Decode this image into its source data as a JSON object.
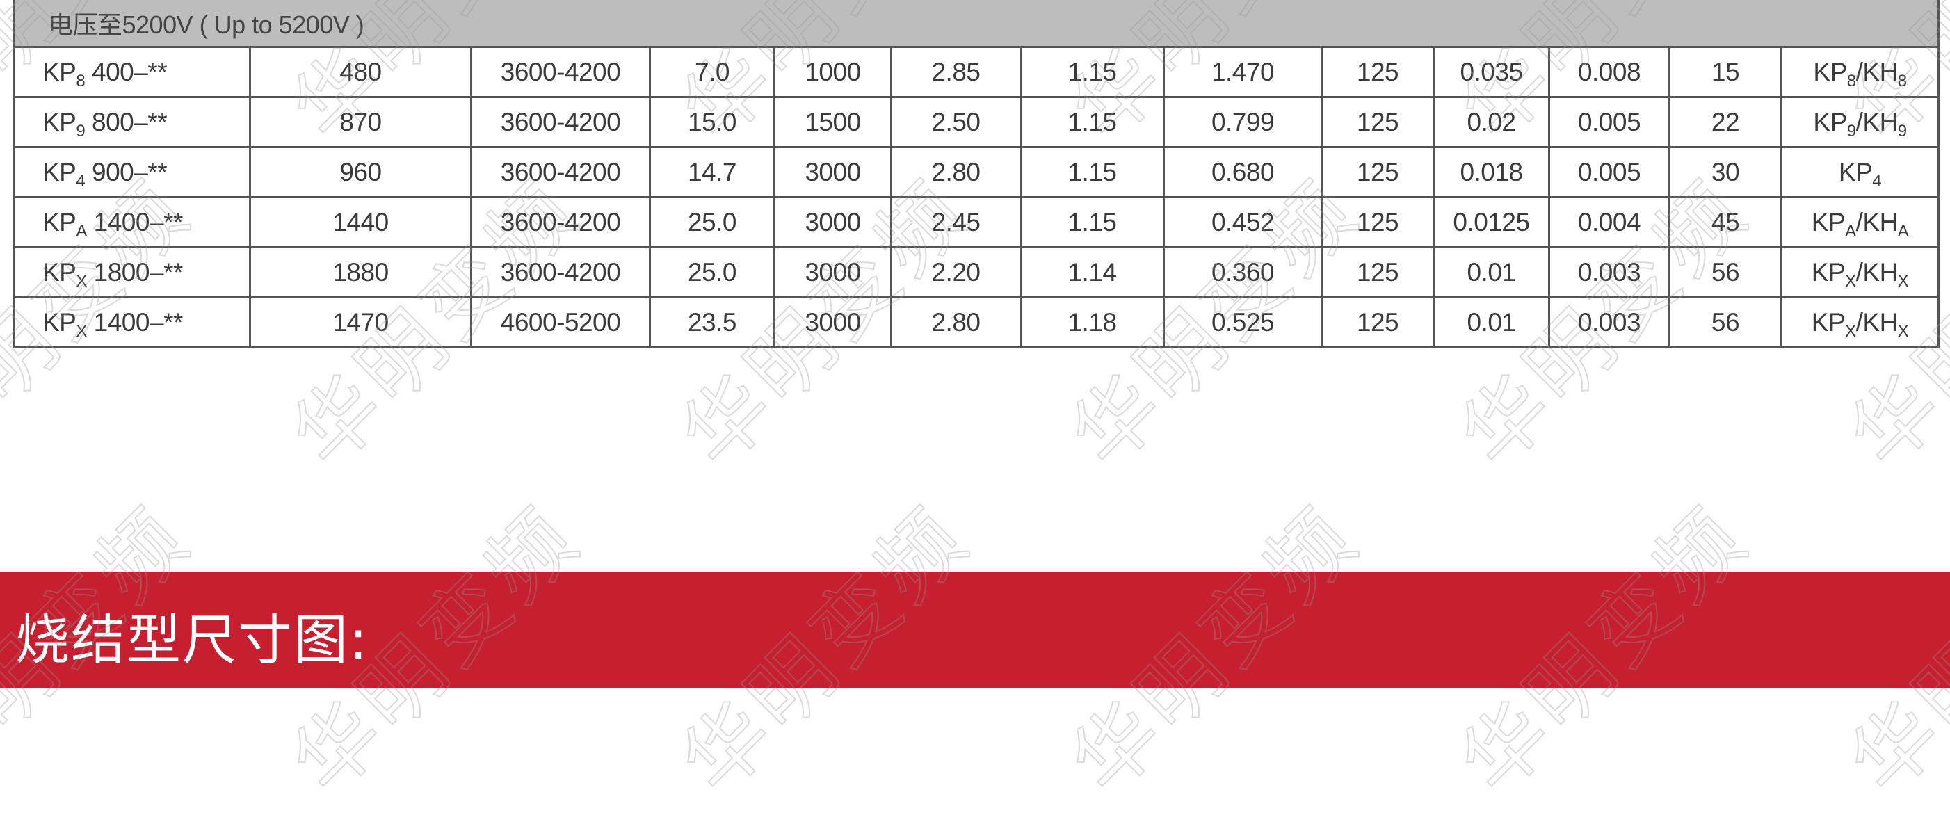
{
  "section_header": "电压至5200V ( Up to 5200V )",
  "rows": [
    {
      "model": {
        "t": "KP",
        "s": "8",
        "rest": "400–**"
      },
      "cells": [
        "480",
        "3600-4200",
        "7.0",
        "1000",
        "2.85",
        "1.15",
        "1.470",
        "125",
        "0.035",
        "0.008",
        "15"
      ],
      "housing": [
        {
          "t": "KP",
          "s": "8"
        },
        {
          "t": "/KH",
          "s": "8"
        }
      ]
    },
    {
      "model": {
        "t": "KP",
        "s": "9",
        "rest": "800–**"
      },
      "cells": [
        "870",
        "3600-4200",
        "15.0",
        "1500",
        "2.50",
        "1.15",
        "0.799",
        "125",
        "0.02",
        "0.005",
        "22"
      ],
      "housing": [
        {
          "t": "KP",
          "s": "9"
        },
        {
          "t": "/KH",
          "s": "9"
        }
      ]
    },
    {
      "model": {
        "t": "KP",
        "s": "4",
        "rest": "900–**"
      },
      "cells": [
        "960",
        "3600-4200",
        "14.7",
        "3000",
        "2.80",
        "1.15",
        "0.680",
        "125",
        "0.018",
        "0.005",
        "30"
      ],
      "housing": [
        {
          "t": "KP",
          "s": "4"
        }
      ]
    },
    {
      "model": {
        "t": "KP",
        "s": "A",
        "rest": "1400–**"
      },
      "cells": [
        "1440",
        "3600-4200",
        "25.0",
        "3000",
        "2.45",
        "1.15",
        "0.452",
        "125",
        "0.0125",
        "0.004",
        "45"
      ],
      "housing": [
        {
          "t": "KP",
          "s": "A"
        },
        {
          "t": "/KH",
          "s": "A"
        }
      ]
    },
    {
      "model": {
        "t": "KP",
        "s": "X",
        "rest": "1800–**"
      },
      "cells": [
        "1880",
        "3600-4200",
        "25.0",
        "3000",
        "2.20",
        "1.14",
        "0.360",
        "125",
        "0.01",
        "0.003",
        "56"
      ],
      "housing": [
        {
          "t": "KP",
          "s": "X"
        },
        {
          "t": "/KH",
          "s": "X"
        }
      ]
    },
    {
      "model": {
        "t": "KP",
        "s": "X",
        "rest": "1400–**"
      },
      "cells": [
        "1470",
        "4600-5200",
        "23.5",
        "3000",
        "2.80",
        "1.18",
        "0.525",
        "125",
        "0.01",
        "0.003",
        "56"
      ],
      "housing": [
        {
          "t": "KP",
          "s": "X"
        },
        {
          "t": "/KH",
          "s": "X"
        }
      ]
    }
  ],
  "band": {
    "title": "烧结型尺寸图:",
    "color": "#c61f2f"
  },
  "watermark": "华明变频"
}
